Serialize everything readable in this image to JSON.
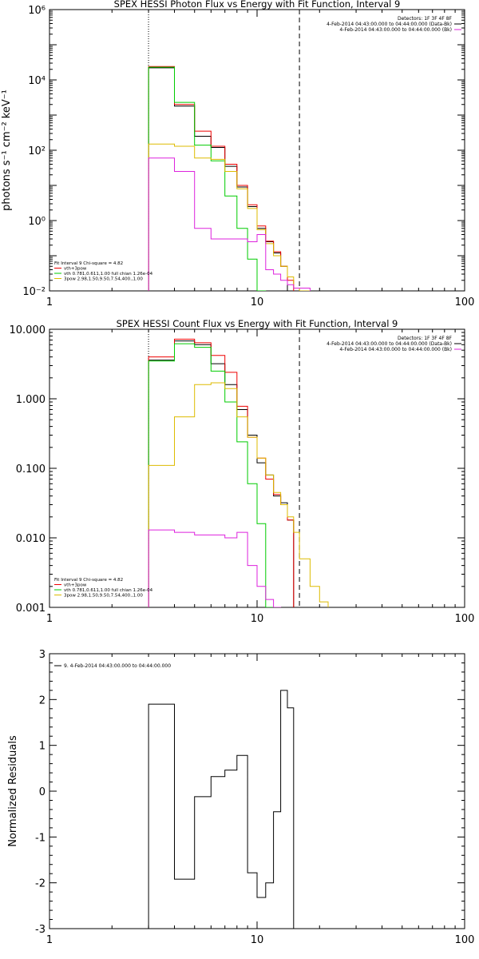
{
  "figure": {
    "panels": [
      {
        "id": "photon",
        "title": "SPEX HESSI Photon Flux vs Energy with Fit Function, Interval 9",
        "ylabel": "photons s⁻¹ cm⁻² keV⁻¹",
        "legend_right": [
          {
            "text": "Detectors: 1F 3F 4F 8F",
            "color": "#000000"
          },
          {
            "text": "4-Feb-2014 04:43:00.000 to 04:44:00.000 (Data-Bk)",
            "color": "#000000"
          },
          {
            "text": "4-Feb-2014 04:43:00.000 to 04:44:00.000 (Bk)",
            "color": "#dd22dd"
          }
        ],
        "legend_left": [
          {
            "text": "Fit Interval 9   Chi-square = 4.82",
            "color": "#000000"
          },
          {
            "text": "vth+3pow",
            "color": "#ee0000"
          },
          {
            "text": "vth 0.781,0.611,1.00  full chian 1.26e-04",
            "color": "#00cc00"
          },
          {
            "text": "3pow 2.98,1.50,9.50,7.54,400.,1.00",
            "color": "#ddbb00"
          }
        ]
      },
      {
        "id": "count",
        "title": "SPEX HESSI Count Flux vs Energy with Fit Function, Interval 9",
        "ylabel": "",
        "legend_right": [
          {
            "text": "Detectors: 1F 3F 4F 8F",
            "color": "#000000"
          },
          {
            "text": "4-Feb-2014 04:43:00.000 to 04:44:00.000 (Data-Bk)",
            "color": "#000000"
          },
          {
            "text": "4-Feb-2014 04:43:00.000 to 04:44:00.000 (Bk)",
            "color": "#dd22dd"
          }
        ],
        "legend_left": [
          {
            "text": "Fit Interval 9   Chi-square = 4.82",
            "color": "#000000"
          },
          {
            "text": "vth+3pow",
            "color": "#ee0000"
          },
          {
            "text": "vth 0.781,0.611,1.00  full chian 1.26e-04",
            "color": "#00cc00"
          },
          {
            "text": "3pow 2.98,1.50,9.50,7.54,400.,1.00",
            "color": "#ddbb00"
          }
        ]
      },
      {
        "id": "resid",
        "title": "",
        "ylabel": "Normalized Residuals",
        "legend_left": [
          {
            "text": "9.  4-Feb-2014 04:43:00.000 to 04:44:00.000",
            "color": "#000000"
          }
        ]
      }
    ]
  },
  "chart_data": [
    {
      "type": "line",
      "panel": "photon",
      "title": "SPEX HESSI Photon Flux vs Energy with Fit Function, Interval 9",
      "ylabel": "photons s⁻¹ cm⁻² keV⁻¹",
      "xlabel": "",
      "xscale": "log",
      "yscale": "log",
      "xlim": [
        1,
        100
      ],
      "ylim": [
        0.01,
        1000000
      ],
      "xticks": [
        {
          "v": 1,
          "label": "1"
        },
        {
          "v": 10,
          "label": "10"
        },
        {
          "v": 100,
          "label": "100"
        }
      ],
      "yticks": [
        {
          "v": 0.01,
          "label": "10⁻²"
        },
        {
          "v": 1,
          "label": "10⁰"
        },
        {
          "v": 100,
          "label": "10²"
        },
        {
          "v": 10000,
          "label": "10⁴"
        },
        {
          "v": 1000000,
          "label": "10⁶"
        }
      ],
      "vlines": [
        {
          "x": 3.0,
          "style": "dotted",
          "color": "#000000"
        },
        {
          "x": 16.0,
          "style": "dashed",
          "color": "#000000"
        }
      ],
      "edges": [
        3.0,
        4.0,
        5.0,
        6.0,
        7.0,
        8.0,
        9.0,
        10.0,
        11.0,
        12.0,
        13.0,
        14.0,
        15.0,
        16.0,
        18.0,
        20.0,
        22.0
      ],
      "series": [
        {
          "name": "Data-Bk",
          "color": "#000000",
          "values": [
            22000,
            1800,
            250,
            120,
            35,
            9,
            2.5,
            0.6,
            0.25,
            0.12,
            0.05,
            null,
            null,
            null,
            null,
            null
          ]
        },
        {
          "name": "vth+3pow",
          "color": "#ee0000",
          "values": [
            24000,
            2000,
            350,
            130,
            40,
            10,
            2.8,
            0.7,
            0.26,
            0.13,
            0.05,
            0.02,
            null,
            null,
            null,
            null
          ]
        },
        {
          "name": "vth",
          "color": "#00cc00",
          "values": [
            23000,
            2300,
            140,
            50,
            5,
            0.6,
            0.08,
            0.01,
            null,
            null,
            null,
            null,
            null,
            null,
            null,
            null
          ]
        },
        {
          "name": "3pow",
          "color": "#ddbb00",
          "values": [
            150,
            130,
            60,
            55,
            25,
            8,
            2.2,
            0.55,
            0.22,
            0.1,
            0.05,
            0.025,
            0.012,
            0.01,
            null,
            null
          ]
        },
        {
          "name": "Bk",
          "color": "#dd22dd",
          "values": [
            60,
            25,
            0.6,
            0.3,
            0.3,
            0.3,
            0.25,
            0.4,
            0.04,
            0.03,
            0.02,
            0.015,
            0.012,
            0.012,
            null,
            null
          ]
        }
      ]
    },
    {
      "type": "line",
      "panel": "count",
      "title": "SPEX HESSI Count Flux vs Energy with Fit Function, Interval 9",
      "xlabel": "",
      "ylabel": "",
      "xscale": "log",
      "yscale": "log",
      "xlim": [
        1,
        100
      ],
      "ylim": [
        0.001,
        10
      ],
      "xticks": [
        {
          "v": 1,
          "label": "1"
        },
        {
          "v": 10,
          "label": "10"
        },
        {
          "v": 100,
          "label": "100"
        }
      ],
      "yticks": [
        {
          "v": 0.001,
          "label": "0.001"
        },
        {
          "v": 0.01,
          "label": "0.010"
        },
        {
          "v": 0.1,
          "label": "0.100"
        },
        {
          "v": 1,
          "label": "1.000"
        },
        {
          "v": 10,
          "label": "10.000"
        }
      ],
      "vlines": [
        {
          "x": 3.0,
          "style": "dotted",
          "color": "#000000"
        },
        {
          "x": 16.0,
          "style": "dashed",
          "color": "#000000"
        }
      ],
      "edges": [
        3.0,
        4.0,
        5.0,
        6.0,
        7.0,
        8.0,
        9.0,
        10.0,
        11.0,
        12.0,
        13.0,
        14.0,
        15.0,
        16.0,
        18.0,
        20.0,
        22.0
      ],
      "series": [
        {
          "name": "Data-Bk",
          "color": "#000000",
          "values": [
            3.6,
            6.8,
            6.0,
            3.2,
            1.6,
            0.7,
            0.3,
            0.12,
            0.08,
            0.04,
            0.032,
            0.018,
            null,
            null,
            null,
            null
          ]
        },
        {
          "name": "vth+3pow",
          "color": "#ee0000",
          "values": [
            4.0,
            7.2,
            6.4,
            4.2,
            2.4,
            0.78,
            0.28,
            0.14,
            0.07,
            0.042,
            0.03,
            0.018,
            null,
            null,
            null,
            null
          ]
        },
        {
          "name": "vth",
          "color": "#00cc00",
          "values": [
            3.5,
            6.2,
            5.5,
            2.5,
            0.9,
            0.24,
            0.06,
            0.016,
            0.001,
            null,
            null,
            null,
            null,
            null,
            null,
            null
          ]
        },
        {
          "name": "3pow",
          "color": "#ddbb00",
          "values": [
            0.11,
            0.55,
            1.6,
            1.7,
            1.4,
            0.55,
            0.28,
            0.14,
            0.08,
            0.045,
            0.03,
            0.02,
            0.012,
            0.005,
            0.002,
            0.0012
          ]
        },
        {
          "name": "Bk",
          "color": "#dd22dd",
          "values": [
            0.013,
            0.012,
            0.011,
            0.011,
            0.01,
            0.012,
            0.004,
            0.002,
            0.0013,
            0.001,
            null,
            null,
            null,
            null,
            null,
            null
          ]
        }
      ]
    },
    {
      "type": "line",
      "panel": "resid",
      "title": "",
      "xlabel": "",
      "ylabel": "Normalized Residuals",
      "xscale": "log",
      "yscale": "linear",
      "xlim": [
        1,
        100
      ],
      "ylim": [
        -3,
        3
      ],
      "xticks": [
        {
          "v": 1,
          "label": "1"
        },
        {
          "v": 10,
          "label": "10"
        },
        {
          "v": 100,
          "label": "100"
        }
      ],
      "yticks": [
        {
          "v": -3,
          "label": "-3"
        },
        {
          "v": -2,
          "label": "-2"
        },
        {
          "v": -1,
          "label": "-1"
        },
        {
          "v": 0,
          "label": "0"
        },
        {
          "v": 1,
          "label": "1"
        },
        {
          "v": 2,
          "label": "2"
        },
        {
          "v": 3,
          "label": "3"
        }
      ],
      "edges": [
        3.0,
        4.0,
        5.0,
        6.0,
        7.0,
        8.0,
        9.0,
        10.0,
        11.0,
        12.0,
        13.0,
        14.0,
        15.0,
        16.0
      ],
      "series": [
        {
          "name": "9.  4-Feb-2014 04:43:00.000 to 04:44:00.000",
          "color": "#000000",
          "values": [
            1.9,
            -1.92,
            -0.12,
            0.32,
            0.46,
            0.78,
            -1.78,
            -2.32,
            -2.0,
            -0.45,
            2.2,
            1.82,
            -3.0
          ]
        }
      ]
    }
  ]
}
